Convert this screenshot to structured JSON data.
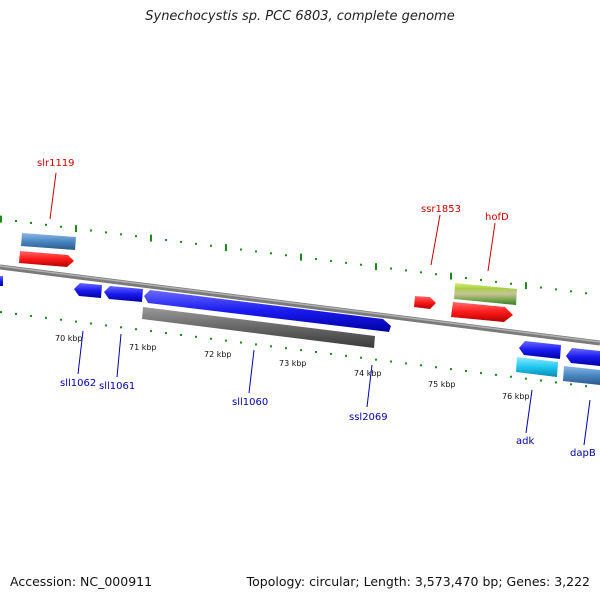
{
  "title": "Synechocystis sp. PCC 6803, complete genome",
  "footer": {
    "accession": "Accession: NC_000911",
    "topology": "Topology: circular; Length: 3,573,470 bp; Genes: 3,222"
  },
  "scale_labels": [
    "70 kbp",
    "71 kbp",
    "72 kbp",
    "73 kbp",
    "74 kbp",
    "75 kbp",
    "76 kbp"
  ],
  "genes": [
    {
      "id": "slr1119",
      "color": "#cc0000"
    },
    {
      "id": "ssr1853",
      "color": "#cc0000"
    },
    {
      "id": "hofD",
      "color": "#cc0000"
    },
    {
      "id": "sll1062",
      "color": "#0000aa"
    },
    {
      "id": "sll1061",
      "color": "#0000aa"
    },
    {
      "id": "sll1060",
      "color": "#0000aa"
    },
    {
      "id": "ssl2069",
      "color": "#0000aa"
    },
    {
      "id": "adk",
      "color": "#0000aa"
    },
    {
      "id": "dapB",
      "color": "#0000aa"
    }
  ],
  "colors": {
    "tick": "#1a8a1a",
    "backbone": "#888888",
    "gene_red": "#ff2020",
    "gene_blue": "#1a1aee",
    "gene_gray": "#666666",
    "gene_steel": "#4a86c0",
    "gene_cyan": "#1ec8f0",
    "gene_olive": "#8bc34a"
  }
}
